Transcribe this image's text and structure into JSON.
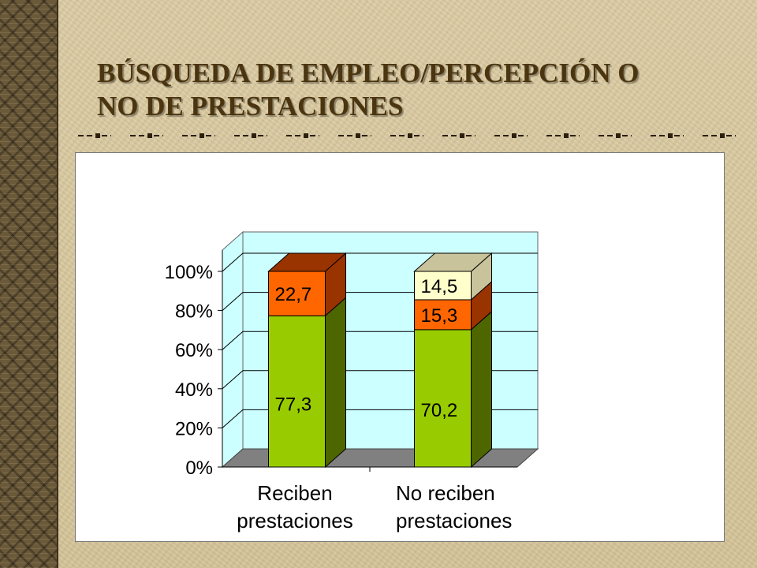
{
  "slide": {
    "title_line1": "BÚSQUEDA DE EMPLEO/PERCEPCIÓN O",
    "title_line2": "NO DE PRESTACIONES"
  },
  "colors": {
    "green_front": "#99cc00",
    "green_side": "#4d6600",
    "orange_front": "#ff6600",
    "orange_side": "#993300",
    "cream_front": "#ffffcc",
    "cream_top": "#c8c39a",
    "wall": "#ccffff",
    "floor": "#808080"
  },
  "chart_data": {
    "type": "bar",
    "stacked": true,
    "percent_stacked": true,
    "three_d": true,
    "categories": [
      "Reciben prestaciones",
      "No reciben prestaciones"
    ],
    "category_labels": [
      [
        "Reciben",
        "prestaciones"
      ],
      [
        "No reciben",
        "prestaciones"
      ]
    ],
    "series": [
      {
        "values": [
          77.3,
          70.2
        ],
        "labels": [
          "77,3",
          "70,2"
        ],
        "color": "#99cc00"
      },
      {
        "values": [
          22.7,
          15.3
        ],
        "labels": [
          "22,7",
          "15,3"
        ],
        "color": "#ff6600"
      },
      {
        "values": [
          0,
          14.5
        ],
        "labels": [
          "",
          "14,5"
        ],
        "color": "#ffffcc"
      }
    ],
    "ylim": [
      0,
      100
    ],
    "yticks": [
      "0%",
      "20%",
      "40%",
      "60%",
      "80%",
      "100%"
    ],
    "grid": true,
    "legend": "none"
  }
}
